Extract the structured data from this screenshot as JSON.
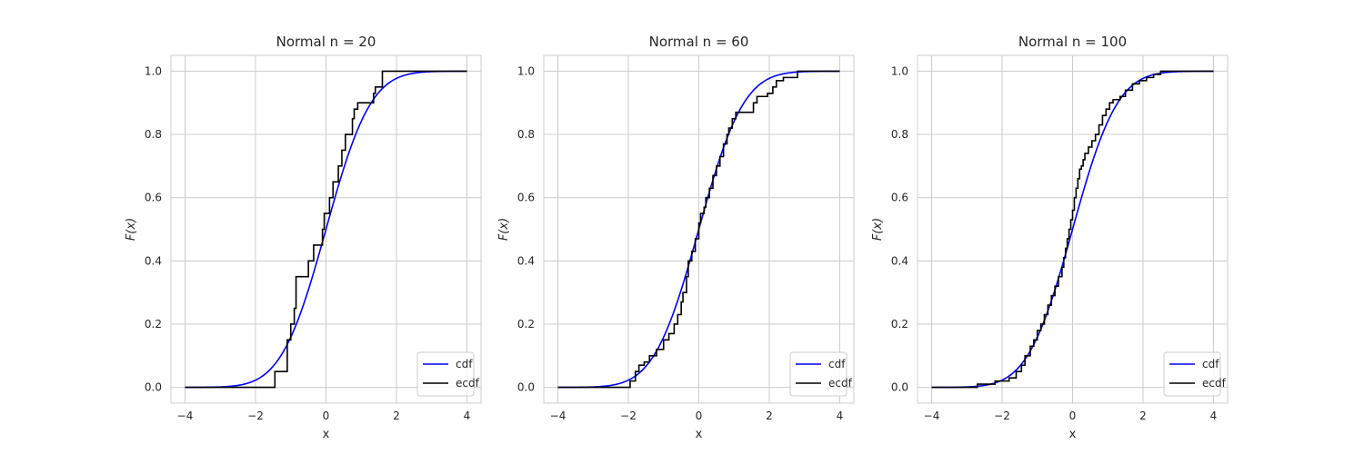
{
  "chart_data": [
    {
      "type": "line",
      "title": "Normal n = 20",
      "xlabel": "x",
      "ylabel": "F(x)",
      "xlim": [
        -4.4,
        4.4
      ],
      "ylim": [
        -0.05,
        1.05
      ],
      "xticks": [
        -4,
        -2,
        0,
        2,
        4
      ],
      "xtick_labels": [
        "−4",
        "−2",
        "0",
        "2",
        "4"
      ],
      "yticks": [
        0.0,
        0.2,
        0.4,
        0.6,
        0.8,
        1.0
      ],
      "ytick_labels": [
        "0.0",
        "0.2",
        "0.4",
        "0.6",
        "0.8",
        "1.0"
      ],
      "grid": true,
      "legend": "lower right",
      "series": [
        {
          "name": "cdf",
          "kind": "normal_cdf",
          "x_range": [
            -4,
            4
          ],
          "color": "#0000ff"
        },
        {
          "name": "ecdf",
          "kind": "step",
          "color": "#000000",
          "x": [
            -4,
            -1.45,
            -1.1,
            -1.0,
            -0.9,
            -0.85,
            -0.5,
            -0.35,
            -0.1,
            -0.05,
            0.1,
            0.2,
            0.35,
            0.45,
            0.55,
            0.75,
            0.8,
            0.9,
            1.35,
            1.4,
            1.6,
            4
          ],
          "y": [
            0.0,
            0.05,
            0.15,
            0.2,
            0.25,
            0.35,
            0.4,
            0.45,
            0.5,
            0.55,
            0.6,
            0.65,
            0.7,
            0.75,
            0.8,
            0.85,
            0.88,
            0.9,
            0.93,
            0.95,
            1.0,
            1.0
          ]
        }
      ]
    },
    {
      "type": "line",
      "title": "Normal n = 60",
      "xlabel": "x",
      "ylabel": "F(x)",
      "xlim": [
        -4.4,
        4.4
      ],
      "ylim": [
        -0.05,
        1.05
      ],
      "xticks": [
        -4,
        -2,
        0,
        2,
        4
      ],
      "xtick_labels": [
        "−4",
        "−2",
        "0",
        "2",
        "4"
      ],
      "yticks": [
        0.0,
        0.2,
        0.4,
        0.6,
        0.8,
        1.0
      ],
      "ytick_labels": [
        "0.0",
        "0.2",
        "0.4",
        "0.6",
        "0.8",
        "1.0"
      ],
      "grid": true,
      "legend": "lower right",
      "series": [
        {
          "name": "cdf",
          "kind": "normal_cdf",
          "x_range": [
            -4,
            4
          ],
          "color": "#0000ff"
        },
        {
          "name": "ecdf",
          "kind": "step",
          "color": "#000000",
          "x": [
            -4,
            -1.95,
            -1.8,
            -1.7,
            -1.55,
            -1.4,
            -1.2,
            -1.0,
            -0.85,
            -0.7,
            -0.6,
            -0.5,
            -0.45,
            -0.35,
            -0.3,
            -0.2,
            -0.1,
            0.0,
            0.05,
            0.15,
            0.2,
            0.3,
            0.4,
            0.5,
            0.6,
            0.7,
            0.8,
            0.85,
            0.95,
            1.05,
            1.1,
            1.2,
            1.55,
            1.65,
            1.95,
            2.1,
            2.2,
            2.4,
            2.8,
            4
          ],
          "y": [
            0.0,
            0.02,
            0.05,
            0.07,
            0.08,
            0.1,
            0.12,
            0.15,
            0.17,
            0.2,
            0.23,
            0.27,
            0.3,
            0.35,
            0.4,
            0.43,
            0.47,
            0.52,
            0.55,
            0.57,
            0.6,
            0.63,
            0.67,
            0.7,
            0.73,
            0.77,
            0.8,
            0.82,
            0.85,
            0.87,
            0.87,
            0.87,
            0.9,
            0.92,
            0.93,
            0.95,
            0.97,
            0.98,
            1.0,
            1.0
          ]
        }
      ]
    },
    {
      "type": "line",
      "title": "Normal n = 100",
      "xlabel": "x",
      "ylabel": "F(x)",
      "xlim": [
        -4.4,
        4.4
      ],
      "ylim": [
        -0.05,
        1.05
      ],
      "xticks": [
        -4,
        -2,
        0,
        2,
        4
      ],
      "xtick_labels": [
        "−4",
        "−2",
        "0",
        "2",
        "4"
      ],
      "yticks": [
        0.0,
        0.2,
        0.4,
        0.6,
        0.8,
        1.0
      ],
      "ytick_labels": [
        "0.0",
        "0.2",
        "0.4",
        "0.6",
        "0.8",
        "1.0"
      ],
      "grid": true,
      "legend": "lower right",
      "series": [
        {
          "name": "cdf",
          "kind": "normal_cdf",
          "x_range": [
            -4,
            4
          ],
          "color": "#0000ff"
        },
        {
          "name": "ecdf",
          "kind": "step",
          "color": "#000000",
          "x": [
            -4,
            -2.7,
            -2.2,
            -1.8,
            -1.6,
            -1.45,
            -1.35,
            -1.2,
            -1.1,
            -1.0,
            -0.9,
            -0.8,
            -0.7,
            -0.6,
            -0.5,
            -0.4,
            -0.3,
            -0.25,
            -0.2,
            -0.15,
            -0.1,
            -0.05,
            0.0,
            0.05,
            0.1,
            0.15,
            0.2,
            0.25,
            0.3,
            0.35,
            0.45,
            0.55,
            0.65,
            0.75,
            0.85,
            0.95,
            1.05,
            1.15,
            1.35,
            1.5,
            1.7,
            1.9,
            2.1,
            2.3,
            2.5,
            4
          ],
          "y": [
            0.0,
            0.01,
            0.02,
            0.03,
            0.05,
            0.07,
            0.1,
            0.13,
            0.15,
            0.18,
            0.2,
            0.23,
            0.26,
            0.29,
            0.32,
            0.35,
            0.38,
            0.41,
            0.44,
            0.47,
            0.5,
            0.53,
            0.56,
            0.6,
            0.63,
            0.66,
            0.69,
            0.7,
            0.72,
            0.74,
            0.76,
            0.78,
            0.8,
            0.83,
            0.86,
            0.88,
            0.9,
            0.91,
            0.92,
            0.94,
            0.96,
            0.97,
            0.98,
            0.99,
            1.0,
            1.0
          ]
        }
      ]
    }
  ]
}
